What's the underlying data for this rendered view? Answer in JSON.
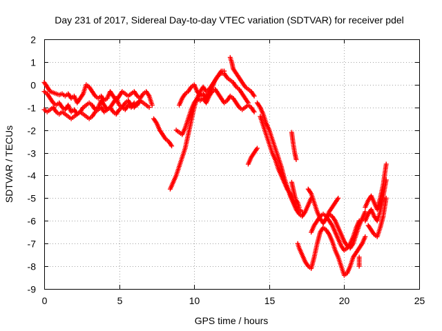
{
  "chart_data": {
    "type": "scatter",
    "title": "Day 231 of 2017, Sidereal Day-to-day VTEC variation (SDTVAR) for receiver pdel",
    "xlabel": "GPS time / hours",
    "ylabel": "SDTVAR / TECUs",
    "xlim": [
      0,
      25
    ],
    "ylim": [
      -9,
      2
    ],
    "xticks": [
      "0",
      "5",
      "10",
      "15",
      "20",
      "25"
    ],
    "yticks": [
      "2",
      "1",
      "0",
      "-1",
      "-2",
      "-3",
      "-4",
      "-5",
      "-6",
      "-7",
      "-8",
      "-9"
    ],
    "grid": true,
    "marker": "+",
    "color": "#ff0000",
    "series": [
      {
        "x": [
          0.0,
          0.2,
          0.4,
          0.6,
          0.8,
          1.0,
          1.2,
          1.4,
          1.6,
          1.8,
          2.0,
          2.2,
          2.4,
          2.6,
          2.8,
          3.0,
          3.2,
          3.4,
          3.6,
          3.8,
          4.0,
          4.2,
          4.4,
          4.6,
          4.8,
          5.0,
          5.2,
          5.4,
          5.6,
          5.8,
          6.0,
          6.2,
          6.4,
          6.6,
          6.8,
          7.0,
          7.2
        ],
        "y": [
          0.1,
          -0.1,
          -0.3,
          -0.35,
          -0.4,
          -0.45,
          -0.4,
          -0.5,
          -0.4,
          -0.6,
          -0.5,
          -0.8,
          -0.6,
          -0.4,
          0.0,
          -0.1,
          -0.3,
          -0.5,
          -0.6,
          -0.5,
          -0.7,
          -0.6,
          -0.3,
          -0.5,
          -0.7,
          -0.5,
          -0.3,
          -0.4,
          -0.5,
          -0.4,
          -0.3,
          -0.5,
          -0.6,
          -0.4,
          -0.3,
          -0.5,
          -0.9
        ]
      },
      {
        "x": [
          0.0,
          0.2,
          0.4,
          0.6,
          0.8,
          1.0,
          1.2,
          1.4,
          1.6,
          1.8,
          2.0,
          2.2,
          2.4,
          2.6,
          2.8,
          3.0,
          3.2,
          3.4,
          3.6,
          3.8,
          4.0,
          4.2,
          4.4,
          4.6,
          4.8,
          5.0,
          5.2,
          5.4,
          5.6,
          5.8,
          6.0,
          6.2,
          6.4,
          6.6,
          6.8,
          7.0
        ],
        "y": [
          -0.3,
          -0.4,
          -0.6,
          -0.8,
          -0.9,
          -0.8,
          -1.0,
          -1.1,
          -0.9,
          -1.2,
          -1.1,
          -1.3,
          -1.2,
          -1.0,
          -0.9,
          -0.8,
          -0.9,
          -1.1,
          -1.0,
          -0.7,
          -0.9,
          -1.1,
          -1.0,
          -0.8,
          -0.6,
          -0.9,
          -1.0,
          -0.8,
          -0.7,
          -0.9,
          -1.0,
          -0.8,
          -0.7,
          -0.8,
          -0.9,
          -1.0
        ]
      },
      {
        "x": [
          0.0,
          0.2,
          0.4,
          0.6,
          0.8,
          1.0,
          1.2,
          1.4,
          1.6,
          1.8,
          2.0,
          2.2,
          2.4,
          2.6,
          2.8,
          3.0,
          3.2,
          3.4,
          3.6,
          3.8,
          4.0,
          4.2,
          4.4,
          4.6,
          4.8,
          5.0,
          5.2,
          5.4,
          5.6,
          5.8,
          6.0,
          6.2,
          6.4
        ],
        "y": [
          -1.1,
          -1.2,
          -1.1,
          -1.0,
          -1.2,
          -1.3,
          -1.2,
          -1.3,
          -1.4,
          -1.5,
          -1.4,
          -1.3,
          -1.2,
          -1.3,
          -1.4,
          -1.5,
          -1.4,
          -1.2,
          -1.1,
          -1.0,
          -1.2,
          -1.1,
          -1.0,
          -1.2,
          -1.3,
          -1.1,
          -1.0,
          -1.1,
          -0.9,
          -1.0,
          -0.8,
          -0.9,
          -0.7
        ]
      },
      {
        "x": [
          7.3,
          7.5,
          7.7,
          7.9,
          8.1,
          8.3,
          8.5
        ],
        "y": [
          -1.5,
          -1.7,
          -2.0,
          -2.2,
          -2.4,
          -2.5,
          -2.7
        ]
      },
      {
        "x": [
          8.4,
          8.6,
          8.8,
          9.0,
          9.2,
          9.4,
          9.6,
          9.8,
          10.0,
          10.2,
          10.4,
          10.6,
          10.8,
          11.0,
          11.2,
          11.4,
          11.6,
          11.8,
          12.0,
          12.2,
          12.4,
          12.6,
          12.8,
          13.0,
          13.2,
          13.4,
          13.6
        ],
        "y": [
          -4.6,
          -4.3,
          -4.0,
          -3.6,
          -3.2,
          -2.8,
          -2.2,
          -1.6,
          -1.0,
          -0.6,
          -0.3,
          -0.1,
          -0.3,
          -0.2,
          0.0,
          0.2,
          0.4,
          0.5,
          0.5,
          0.3,
          0.2,
          0.1,
          -0.1,
          -0.2,
          -0.4,
          -0.6,
          -0.8
        ]
      },
      {
        "x": [
          8.8,
          9.0,
          9.2,
          9.4,
          9.6,
          9.8,
          10.0,
          10.2,
          10.4,
          10.6,
          10.8,
          11.0,
          11.2,
          11.4,
          11.6,
          11.8,
          12.0,
          12.2,
          12.4,
          12.6,
          12.8,
          13.0,
          13.2,
          13.4,
          13.6,
          13.8,
          14.0
        ],
        "y": [
          -2.0,
          -2.1,
          -2.2,
          -1.9,
          -1.5,
          -1.1,
          -0.8,
          -0.6,
          -0.7,
          -0.6,
          -0.8,
          -0.5,
          -0.3,
          -0.2,
          -0.4,
          -0.6,
          -0.8,
          -0.7,
          -0.5,
          -0.6,
          -0.8,
          -1.0,
          -1.1,
          -1.0,
          -0.9,
          -1.0,
          -1.2
        ]
      },
      {
        "x": [
          9.0,
          9.2,
          9.4,
          9.6,
          9.8,
          10.0,
          10.2,
          10.4,
          10.6,
          10.8,
          11.0,
          11.2,
          11.4,
          11.6,
          11.8,
          12.0
        ],
        "y": [
          -0.9,
          -0.6,
          -0.4,
          -0.3,
          -0.1,
          0.0,
          -0.3,
          -0.5,
          -0.4,
          -0.6,
          -0.3,
          -0.1,
          0.2,
          0.4,
          0.6,
          0.6
        ]
      },
      {
        "x": [
          12.4,
          12.5,
          12.6,
          12.8,
          13.0,
          13.2,
          13.4,
          13.6,
          13.8,
          14.0
        ],
        "y": [
          1.2,
          1.0,
          0.7,
          0.5,
          0.3,
          0.1,
          -0.1,
          -0.2,
          -0.3,
          -0.5
        ]
      },
      {
        "x": [
          13.6,
          13.8,
          14.0,
          14.2
        ],
        "y": [
          -3.5,
          -3.2,
          -3.0,
          -2.8
        ]
      },
      {
        "x": [
          14.2,
          14.4,
          14.6,
          14.8,
          15.0,
          15.2,
          15.4,
          15.6,
          15.8,
          16.0,
          16.2,
          16.4,
          16.6,
          16.8,
          17.0,
          17.2,
          17.4,
          17.6,
          17.8
        ],
        "y": [
          -0.8,
          -1.0,
          -1.3,
          -1.7,
          -2.0,
          -2.4,
          -2.8,
          -3.2,
          -3.6,
          -4.1,
          -4.5,
          -4.9,
          -5.2,
          -5.5,
          -5.7,
          -5.8,
          -5.6,
          -5.3,
          -5.0
        ]
      },
      {
        "x": [
          14.4,
          14.6,
          14.8,
          15.0,
          15.2,
          15.4,
          15.6,
          15.8,
          16.0,
          16.2,
          16.4,
          16.6,
          16.8,
          17.0,
          17.2
        ],
        "y": [
          -1.4,
          -1.8,
          -2.2,
          -2.6,
          -3.0,
          -3.3,
          -3.7,
          -4.0,
          -4.3,
          -4.6,
          -4.8,
          -5.1,
          -5.4,
          -5.5,
          -5.6
        ]
      },
      {
        "x": [
          16.5,
          16.6,
          16.7,
          16.8
        ],
        "y": [
          -2.1,
          -2.6,
          -3.0,
          -3.3
        ]
      },
      {
        "x": [
          16.5,
          16.6,
          16.7,
          16.8,
          16.9,
          17.0
        ],
        "y": [
          -4.3,
          -4.6,
          -4.9,
          -5.1,
          -5.2,
          -5.4
        ]
      },
      {
        "x": [
          17.6,
          17.8,
          18.0,
          18.2,
          18.4,
          18.6,
          18.8,
          19.0,
          19.2,
          19.4,
          19.6
        ],
        "y": [
          -4.6,
          -4.8,
          -5.2,
          -5.6,
          -5.9,
          -6.1,
          -5.9,
          -5.6,
          -5.4,
          -5.2,
          -5.0
        ]
      },
      {
        "x": [
          16.9,
          17.0,
          17.2,
          17.4,
          17.6,
          17.8,
          18.0,
          18.2,
          18.4,
          18.6,
          18.8,
          19.0,
          19.2,
          19.4,
          19.6,
          19.8,
          20.0,
          20.2,
          20.4,
          20.6,
          20.8,
          21.0,
          21.2,
          21.4
        ],
        "y": [
          -7.0,
          -7.2,
          -7.5,
          -7.8,
          -8.0,
          -8.1,
          -7.6,
          -7.0,
          -6.5,
          -6.3,
          -6.4,
          -6.6,
          -6.9,
          -7.3,
          -7.6,
          -8.0,
          -8.4,
          -8.3,
          -8.0,
          -7.6,
          -7.4,
          -7.2,
          -7.0,
          -6.7
        ]
      },
      {
        "x": [
          17.8,
          18.0,
          18.2,
          18.4,
          18.6,
          18.8,
          19.0,
          19.2,
          19.4,
          19.6,
          19.8,
          20.0,
          20.2,
          20.4,
          20.6,
          20.8,
          21.0
        ],
        "y": [
          -6.5,
          -6.2,
          -6.0,
          -5.8,
          -5.7,
          -5.8,
          -6.0,
          -6.2,
          -6.5,
          -6.8,
          -7.1,
          -7.3,
          -7.2,
          -7.0,
          -6.7,
          -6.3,
          -6.0
        ]
      },
      {
        "x": [
          18.6,
          18.8,
          19.0,
          19.2,
          19.4,
          19.6,
          19.8,
          20.0,
          20.2,
          20.4,
          20.6,
          20.8,
          21.0,
          21.2,
          21.4
        ],
        "y": [
          -6.1,
          -5.9,
          -5.7,
          -5.8,
          -6.0,
          -6.3,
          -6.6,
          -6.9,
          -7.1,
          -7.2,
          -7.0,
          -6.6,
          -6.2,
          -5.9,
          -5.6
        ]
      },
      {
        "x": [
          21.0,
          21.0,
          21.0
        ],
        "y": [
          -7.6,
          -7.8,
          -8.0
        ]
      },
      {
        "x": [
          21.4,
          21.6,
          21.8,
          22.0,
          22.2,
          22.4,
          22.6,
          22.8
        ],
        "y": [
          -5.4,
          -5.1,
          -4.9,
          -5.2,
          -5.5,
          -5.0,
          -4.4,
          -3.5
        ]
      },
      {
        "x": [
          21.6,
          21.8,
          22.0,
          22.2,
          22.4,
          22.6,
          22.8
        ],
        "y": [
          -6.2,
          -6.4,
          -6.6,
          -6.7,
          -6.3,
          -5.8,
          -5.0
        ]
      },
      {
        "x": [
          21.4,
          21.6,
          21.8,
          22.0,
          22.2,
          22.4,
          22.6,
          22.8
        ],
        "y": [
          -6.0,
          -5.7,
          -5.5,
          -5.8,
          -6.0,
          -5.6,
          -4.9,
          -4.2
        ]
      }
    ]
  }
}
